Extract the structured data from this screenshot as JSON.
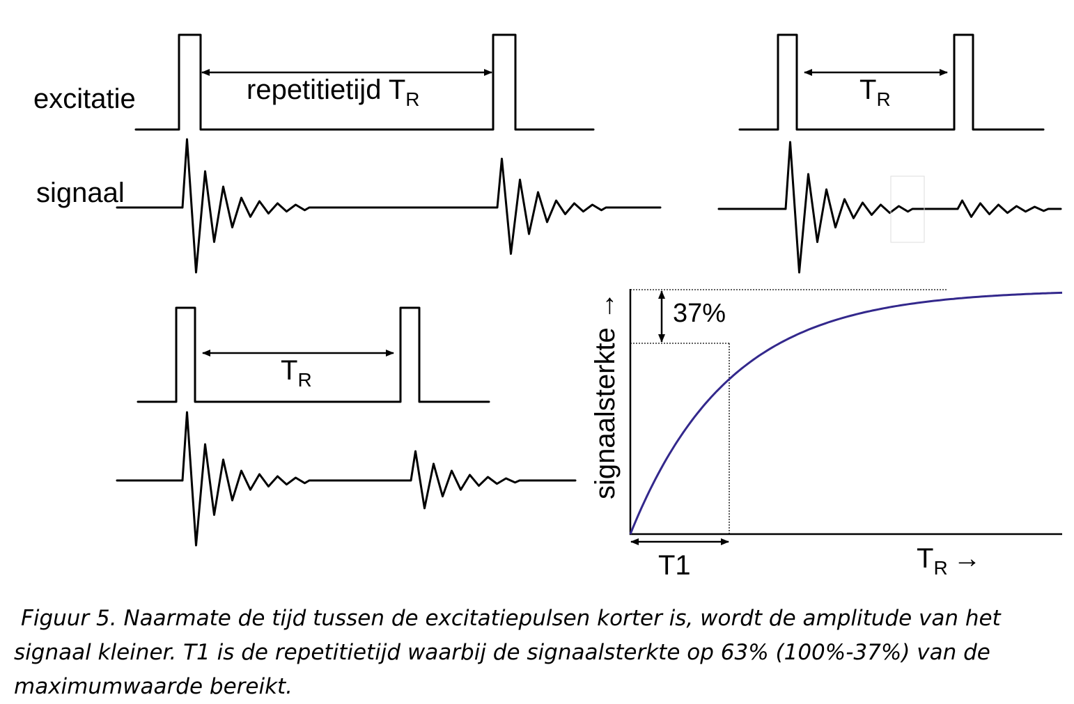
{
  "labels": {
    "excitation": "excitatie",
    "signal": "signaal",
    "tr_long_prefix": "repetitietijd T",
    "tr_T": "T",
    "tr_sub": "R",
    "percent_37": "37%",
    "t1": "T1",
    "y_axis": "signaalsterkte →",
    "x_axis_T": "T",
    "x_axis_sub": "R",
    "x_axis_arrow": "→"
  },
  "colors": {
    "curve": "#33288c",
    "lines": "#000000"
  },
  "caption": "Figuur 5. Naarmate de tijd tussen de excitatiepulsen korter is, wordt de amplitude van het signaal kleiner. T1 is de repetitietijd waarbij de signaalsterkte op 63% (100%-37%) van de maximumwaarde bereikt."
}
